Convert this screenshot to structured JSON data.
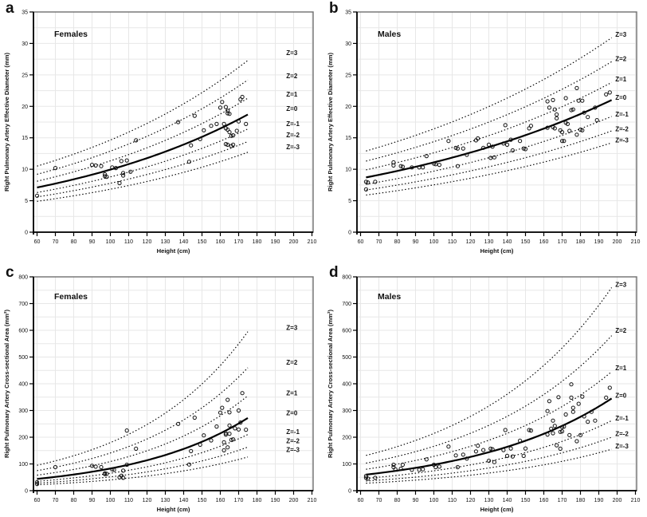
{
  "figure": {
    "background": "#ffffff",
    "grid_color": "#e7e7e7",
    "border_color": "#6f6f6f",
    "axis_color": "#000000",
    "curve_color": "#000000",
    "point_color": "#111111"
  },
  "chart_data": [
    {
      "id": "a",
      "type": "scatter",
      "panel_letter": "a",
      "group_label": "Females",
      "xlabel": "Height (cm)",
      "ylabel": "Right Pulmonary Artery Effective Diameter (mm)",
      "xlim": [
        55,
        212
      ],
      "ylim": [
        0,
        35
      ],
      "x_ticks": [
        60,
        70,
        80,
        90,
        100,
        110,
        120,
        130,
        140,
        150,
        160,
        170,
        180,
        190,
        200,
        210
      ],
      "y_ticks": [
        0,
        5,
        10,
        15,
        20,
        25,
        30,
        35
      ],
      "y_grid_step": 2.5,
      "grid": true,
      "curve_x_range": [
        60,
        175
      ],
      "z_label_x": 196,
      "z_curves": [
        {
          "label": "Z=3",
          "z": 3,
          "y_start": 10.5,
          "y_end": 27.3,
          "label_y": 28.5,
          "style": "dotted"
        },
        {
          "label": "Z=2",
          "z": 2,
          "y_start": 9.2,
          "y_end": 24.2,
          "label_y": 24.8,
          "style": "dotted"
        },
        {
          "label": "Z=1",
          "z": 1,
          "y_start": 8.1,
          "y_end": 21.3,
          "label_y": 21.9,
          "style": "dotted"
        },
        {
          "label": "Z=0",
          "z": 0,
          "y_start": 7.1,
          "y_end": 18.7,
          "label_y": 19.6,
          "style": "solid"
        },
        {
          "label": "Z=-1",
          "z": -1,
          "y_start": 6.3,
          "y_end": 16.4,
          "label_y": 17.2,
          "style": "dotted"
        },
        {
          "label": "Z=-2",
          "z": -2,
          "y_start": 5.6,
          "y_end": 14.4,
          "label_y": 15.4,
          "style": "dotted"
        },
        {
          "label": "Z=-3",
          "z": -3,
          "y_start": 4.9,
          "y_end": 12.7,
          "label_y": 13.5,
          "style": "dotted"
        }
      ],
      "points": [
        [
          60,
          5.8
        ],
        [
          70,
          10.2
        ],
        [
          90,
          10.7
        ],
        [
          92,
          10.6
        ],
        [
          95,
          10.5
        ],
        [
          97,
          9.2
        ],
        [
          97,
          8.9
        ],
        [
          98,
          8.8
        ],
        [
          101,
          10.3
        ],
        [
          103,
          10.2
        ],
        [
          105,
          7.8
        ],
        [
          106,
          11.3
        ],
        [
          107,
          9.0
        ],
        [
          109,
          11.4
        ],
        [
          107,
          9.4
        ],
        [
          111,
          9.6
        ],
        [
          114,
          14.6
        ],
        [
          137,
          17.5
        ],
        [
          143,
          11.2
        ],
        [
          144,
          13.8
        ],
        [
          146,
          18.5
        ],
        [
          149,
          14.8
        ],
        [
          151,
          16.2
        ],
        [
          155,
          16.9
        ],
        [
          158,
          17.2
        ],
        [
          160,
          19.8
        ],
        [
          161,
          20.7
        ],
        [
          162,
          17.2
        ],
        [
          163,
          19.9
        ],
        [
          163,
          16.5
        ],
        [
          163,
          14.0
        ],
        [
          164,
          19.3
        ],
        [
          164,
          18.9
        ],
        [
          164,
          16.3
        ],
        [
          164,
          13.9
        ],
        [
          165,
          18.8
        ],
        [
          165,
          15.9
        ],
        [
          166,
          13.7
        ],
        [
          166,
          15.3
        ],
        [
          167,
          15.4
        ],
        [
          167,
          13.9
        ],
        [
          169,
          16.1
        ],
        [
          170,
          17.6
        ],
        [
          171,
          21.1
        ],
        [
          172,
          21.5
        ],
        [
          174,
          17.2
        ]
      ]
    },
    {
      "id": "b",
      "type": "scatter",
      "panel_letter": "b",
      "group_label": "Males",
      "xlabel": "Height (cm)",
      "ylabel": "Right Pulmonary Artery Effective Diameter (mm)",
      "xlim": [
        55,
        212
      ],
      "ylim": [
        0,
        35
      ],
      "x_ticks": [
        60,
        70,
        80,
        90,
        100,
        110,
        120,
        130,
        140,
        150,
        160,
        170,
        180,
        190,
        200,
        210
      ],
      "y_ticks": [
        0,
        5,
        10,
        15,
        20,
        25,
        30,
        35
      ],
      "y_grid_step": 2.5,
      "grid": true,
      "curve_x_range": [
        63,
        197
      ],
      "z_label_x": 199,
      "z_curves": [
        {
          "label": "Z=3",
          "z": 3,
          "y_start": 12.9,
          "y_end": 30.9,
          "label_y": 31.4,
          "style": "dotted"
        },
        {
          "label": "Z=2",
          "z": 2,
          "y_start": 11.3,
          "y_end": 27.1,
          "label_y": 27.5,
          "style": "dotted"
        },
        {
          "label": "Z=1",
          "z": 1,
          "y_start": 9.9,
          "y_end": 23.8,
          "label_y": 24.3,
          "style": "dotted"
        },
        {
          "label": "Z=0",
          "z": 0,
          "y_start": 8.7,
          "y_end": 21.0,
          "label_y": 21.4,
          "style": "solid"
        },
        {
          "label": "Z=-1",
          "z": -1,
          "y_start": 7.6,
          "y_end": 18.4,
          "label_y": 18.7,
          "style": "dotted"
        },
        {
          "label": "Z=-2",
          "z": -2,
          "y_start": 6.7,
          "y_end": 16.1,
          "label_y": 16.4,
          "style": "dotted"
        },
        {
          "label": "Z=-3",
          "z": -3,
          "y_start": 5.9,
          "y_end": 14.2,
          "label_y": 14.6,
          "style": "dotted"
        }
      ],
      "points": [
        [
          63,
          8.0
        ],
        [
          63,
          6.8
        ],
        [
          64,
          7.9
        ],
        [
          68,
          8.0
        ],
        [
          78,
          11.1
        ],
        [
          78,
          10.6
        ],
        [
          82,
          10.5
        ],
        [
          83,
          10.4
        ],
        [
          88,
          10.3
        ],
        [
          92,
          10.3
        ],
        [
          94,
          10.3
        ],
        [
          96,
          12.1
        ],
        [
          100,
          10.9
        ],
        [
          101,
          10.8
        ],
        [
          103,
          10.7
        ],
        [
          108,
          14.5
        ],
        [
          112,
          13.4
        ],
        [
          113,
          13.3
        ],
        [
          113,
          10.5
        ],
        [
          116,
          13.3
        ],
        [
          118,
          12.3
        ],
        [
          123,
          14.6
        ],
        [
          124,
          14.9
        ],
        [
          127,
          13.4
        ],
        [
          130,
          13.9
        ],
        [
          131,
          11.8
        ],
        [
          132,
          13.6
        ],
        [
          133,
          11.9
        ],
        [
          138,
          14.1
        ],
        [
          139,
          17.0
        ],
        [
          140,
          13.9
        ],
        [
          142,
          14.7
        ],
        [
          143,
          13.0
        ],
        [
          147,
          14.5
        ],
        [
          149,
          13.3
        ],
        [
          150,
          13.2
        ],
        [
          152,
          16.5
        ],
        [
          153,
          16.9
        ],
        [
          162,
          16.6
        ],
        [
          162,
          20.8
        ],
        [
          163,
          19.8
        ],
        [
          165,
          21.0
        ],
        [
          165,
          16.7
        ],
        [
          166,
          19.5
        ],
        [
          166,
          16.5
        ],
        [
          167,
          18.1
        ],
        [
          167,
          18.7
        ],
        [
          169,
          16.2
        ],
        [
          170,
          15.9
        ],
        [
          170,
          14.5
        ],
        [
          171,
          14.5
        ],
        [
          172,
          21.3
        ],
        [
          172,
          17.4
        ],
        [
          173,
          17.2
        ],
        [
          174,
          16.1
        ],
        [
          175,
          19.4
        ],
        [
          176,
          19.5
        ],
        [
          178,
          22.9
        ],
        [
          178,
          15.5
        ],
        [
          179,
          20.9
        ],
        [
          180,
          16.3
        ],
        [
          181,
          20.9
        ],
        [
          181,
          16.2
        ],
        [
          182,
          19.0
        ],
        [
          184,
          18.3
        ],
        [
          188,
          19.8
        ],
        [
          189,
          17.8
        ],
        [
          194,
          21.9
        ],
        [
          196,
          22.2
        ]
      ]
    },
    {
      "id": "c",
      "type": "scatter",
      "panel_letter": "c",
      "group_label": "Females",
      "xlabel": "Height (cm)",
      "ylabel": "Right Pulmonary Artery Cross-sectional Area (mm²)",
      "xlim": [
        55,
        212
      ],
      "ylim": [
        0,
        800
      ],
      "x_ticks": [
        60,
        70,
        80,
        90,
        100,
        110,
        120,
        130,
        140,
        150,
        160,
        170,
        180,
        190,
        200,
        210
      ],
      "y_ticks": [
        0,
        100,
        200,
        300,
        400,
        500,
        600,
        700,
        800
      ],
      "y_grid_step": 50,
      "grid": true,
      "curve_x_range": [
        60,
        175
      ],
      "z_label_x": 196,
      "z_curves": [
        {
          "label": "Z=3",
          "z": 3,
          "y_start": 95,
          "y_end": 595,
          "label_y": 610,
          "style": "dotted"
        },
        {
          "label": "Z=2",
          "z": 2,
          "y_start": 75,
          "y_end": 460,
          "label_y": 480,
          "style": "dotted"
        },
        {
          "label": "Z=1",
          "z": 1,
          "y_start": 58,
          "y_end": 355,
          "label_y": 365,
          "style": "dotted"
        },
        {
          "label": "Z=0",
          "z": 0,
          "y_start": 44,
          "y_end": 272,
          "label_y": 290,
          "style": "solid"
        },
        {
          "label": "Z=-1",
          "z": -1,
          "y_start": 35,
          "y_end": 210,
          "label_y": 220,
          "style": "dotted"
        },
        {
          "label": "Z=-2",
          "z": -2,
          "y_start": 28,
          "y_end": 163,
          "label_y": 185,
          "style": "dotted"
        },
        {
          "label": "Z=-3",
          "z": -3,
          "y_start": 22,
          "y_end": 126,
          "label_y": 152,
          "style": "dotted"
        }
      ],
      "points": [
        [
          60,
          25
        ],
        [
          60,
          32
        ],
        [
          70,
          88
        ],
        [
          90,
          93
        ],
        [
          92,
          90
        ],
        [
          95,
          88
        ],
        [
          97,
          65
        ],
        [
          97,
          62
        ],
        [
          98,
          63
        ],
        [
          101,
          80
        ],
        [
          102,
          78
        ],
        [
          105,
          50
        ],
        [
          106,
          56
        ],
        [
          107,
          75
        ],
        [
          107,
          48
        ],
        [
          109,
          97
        ],
        [
          109,
          225
        ],
        [
          114,
          157
        ],
        [
          137,
          250
        ],
        [
          143,
          98
        ],
        [
          144,
          148
        ],
        [
          146,
          273
        ],
        [
          149,
          172
        ],
        [
          151,
          207
        ],
        [
          155,
          188
        ],
        [
          158,
          240
        ],
        [
          160,
          292
        ],
        [
          161,
          310
        ],
        [
          162,
          151
        ],
        [
          162,
          181
        ],
        [
          163,
          210
        ],
        [
          163,
          215
        ],
        [
          164,
          340
        ],
        [
          164,
          162
        ],
        [
          165,
          293
        ],
        [
          165,
          244
        ],
        [
          165,
          213
        ],
        [
          166,
          190
        ],
        [
          167,
          192
        ],
        [
          168,
          233
        ],
        [
          170,
          229
        ],
        [
          170,
          300
        ],
        [
          171,
          255
        ],
        [
          172,
          365
        ],
        [
          174,
          228
        ]
      ]
    },
    {
      "id": "d",
      "type": "scatter",
      "panel_letter": "d",
      "group_label": "Males",
      "xlabel": "Height (cm)",
      "ylabel": "Right Pulmonary Artery Cross-sectional Area (mm²)",
      "xlim": [
        55,
        212
      ],
      "ylim": [
        0,
        800
      ],
      "x_ticks": [
        60,
        70,
        80,
        90,
        100,
        110,
        120,
        130,
        140,
        150,
        160,
        170,
        180,
        190,
        200,
        210
      ],
      "y_ticks": [
        0,
        100,
        200,
        300,
        400,
        500,
        600,
        700,
        800
      ],
      "y_grid_step": 50,
      "grid": true,
      "curve_x_range": [
        63,
        197
      ],
      "z_label_x": 199,
      "z_curves": [
        {
          "label": "Z=3",
          "z": 3,
          "y_start": 132,
          "y_end": 760,
          "label_y": 770,
          "style": "dotted"
        },
        {
          "label": "Z=2",
          "z": 2,
          "y_start": 103,
          "y_end": 580,
          "label_y": 599,
          "style": "dotted"
        },
        {
          "label": "Z=1",
          "z": 1,
          "y_start": 80,
          "y_end": 445,
          "label_y": 458,
          "style": "dotted"
        },
        {
          "label": "Z=0",
          "z": 0,
          "y_start": 60,
          "y_end": 345,
          "label_y": 355,
          "style": "solid"
        },
        {
          "label": "Z=-1",
          "z": -1,
          "y_start": 46,
          "y_end": 262,
          "label_y": 271,
          "style": "dotted"
        },
        {
          "label": "Z=-2",
          "z": -2,
          "y_start": 36,
          "y_end": 200,
          "label_y": 212,
          "style": "dotted"
        },
        {
          "label": "Z=-3",
          "z": -3,
          "y_start": 28,
          "y_end": 155,
          "label_y": 166,
          "style": "dotted"
        }
      ],
      "points": [
        [
          63,
          55
        ],
        [
          63,
          48
        ],
        [
          64,
          45
        ],
        [
          68,
          48
        ],
        [
          78,
          97
        ],
        [
          78,
          88
        ],
        [
          79,
          80
        ],
        [
          82,
          82
        ],
        [
          83,
          97
        ],
        [
          88,
          78
        ],
        [
          92,
          78
        ],
        [
          94,
          80
        ],
        [
          96,
          117
        ],
        [
          100,
          97
        ],
        [
          101,
          88
        ],
        [
          103,
          90
        ],
        [
          108,
          165
        ],
        [
          112,
          132
        ],
        [
          113,
          88
        ],
        [
          116,
          135
        ],
        [
          118,
          120
        ],
        [
          123,
          147
        ],
        [
          124,
          168
        ],
        [
          127,
          152
        ],
        [
          130,
          112
        ],
        [
          131,
          157
        ],
        [
          132,
          155
        ],
        [
          133,
          107
        ],
        [
          138,
          152
        ],
        [
          139,
          227
        ],
        [
          140,
          130
        ],
        [
          142,
          158
        ],
        [
          143,
          128
        ],
        [
          147,
          187
        ],
        [
          149,
          130
        ],
        [
          150,
          158
        ],
        [
          152,
          227
        ],
        [
          153,
          225
        ],
        [
          162,
          210
        ],
        [
          162,
          298
        ],
        [
          163,
          335
        ],
        [
          164,
          232
        ],
        [
          165,
          215
        ],
        [
          165,
          262
        ],
        [
          166,
          242
        ],
        [
          167,
          170
        ],
        [
          168,
          350
        ],
        [
          169,
          157
        ],
        [
          169,
          220
        ],
        [
          170,
          238
        ],
        [
          170,
          222
        ],
        [
          171,
          240
        ],
        [
          172,
          285
        ],
        [
          174,
          208
        ],
        [
          175,
          398
        ],
        [
          175,
          348
        ],
        [
          176,
          295
        ],
        [
          176,
          310
        ],
        [
          178,
          185
        ],
        [
          179,
          325
        ],
        [
          180,
          208
        ],
        [
          181,
          352
        ],
        [
          182,
          278
        ],
        [
          184,
          258
        ],
        [
          186,
          295
        ],
        [
          188,
          262
        ],
        [
          194,
          348
        ],
        [
          196,
          385
        ]
      ]
    }
  ]
}
